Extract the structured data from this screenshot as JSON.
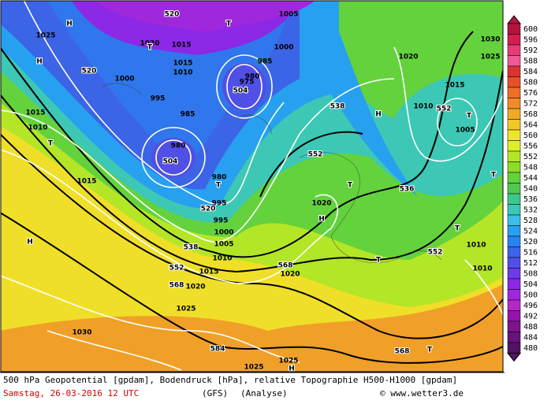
{
  "map": {
    "labels": [
      "520",
      "1025",
      "H",
      "H",
      "520",
      "1000",
      "1020",
      "1015",
      "1015",
      "1010",
      "T",
      "T",
      "985",
      "980",
      "975",
      "504",
      "1005",
      "1000",
      "995",
      "985",
      "980",
      "504",
      "T",
      "1015",
      "1010",
      "1015",
      "538",
      "H",
      "552",
      "T",
      "536",
      "1020",
      "H",
      "T",
      "552",
      "552",
      "T",
      "1005",
      "1010",
      "1015",
      "1020",
      "1030",
      "1025",
      "T",
      "T",
      "1010",
      "1010",
      "H",
      "538",
      "552",
      "568",
      "1020",
      "1015",
      "1010",
      "568",
      "1020",
      "1025",
      "1030",
      "584",
      "568",
      "T",
      "1025",
      "1025",
      "H",
      "520",
      "980",
      "T",
      "995",
      "995",
      "1000",
      "1005"
    ]
  },
  "colorbar": {
    "labels": [
      600,
      596,
      592,
      588,
      584,
      580,
      576,
      572,
      568,
      564,
      560,
      556,
      552,
      548,
      544,
      540,
      536,
      532,
      528,
      524,
      520,
      516,
      512,
      508,
      504,
      500,
      496,
      492,
      488,
      484,
      480
    ],
    "colors": [
      "#b4143c",
      "#d21e50",
      "#e63c78",
      "#f05a96",
      "#dc3232",
      "#e65028",
      "#f06e28",
      "#f08c28",
      "#f0aa28",
      "#f0c828",
      "#f0e628",
      "#dcf028",
      "#b4e628",
      "#8cdc28",
      "#64d23c",
      "#50c850",
      "#3cc88c",
      "#3cc8b4",
      "#3cbee6",
      "#28a0f0",
      "#2882f0",
      "#3c64e6",
      "#5050e6",
      "#6e3ce6",
      "#8c28e6",
      "#a028dc",
      "#b428c8",
      "#9614aa",
      "#7d148c",
      "#64147a",
      "#501464"
    ]
  },
  "footer": {
    "line1": "500 hPa Geopotential [gpdam], Bodendruck [hPa], relative Topographie H500-H1000 [gpdam]",
    "date": "Samstag, 26-03-2016  12 UTC",
    "model": "(GFS)",
    "run": "(Analyse)",
    "credit": "© www.wetter3.de"
  }
}
